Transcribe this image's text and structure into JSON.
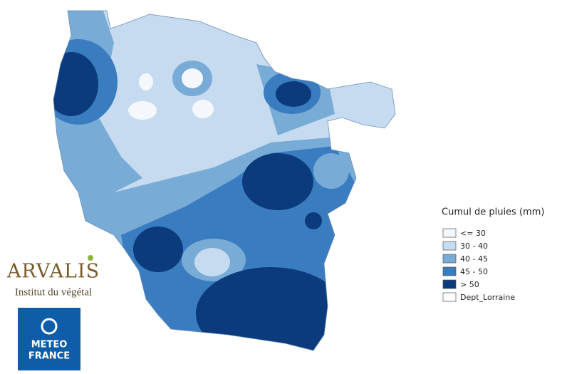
{
  "legend": {
    "title": "Cumul de pluies (mm)",
    "items": [
      {
        "label": "<= 30",
        "color": "#f4f8fc"
      },
      {
        "label": "30 - 40",
        "color": "#c6dbef"
      },
      {
        "label": "40 - 45",
        "color": "#78acd6"
      },
      {
        "label": "45 - 50",
        "color": "#3a7cc0"
      },
      {
        "label": "> 50",
        "color": "#0b3b7c"
      },
      {
        "label": "Dept_Lorraine",
        "color": "#ffffff"
      }
    ]
  },
  "logos": {
    "arvalis": "ARVALIS",
    "arvalis_subtitle": "Institut du végétal",
    "meteo": "METEO",
    "france": "FRANCE"
  }
}
